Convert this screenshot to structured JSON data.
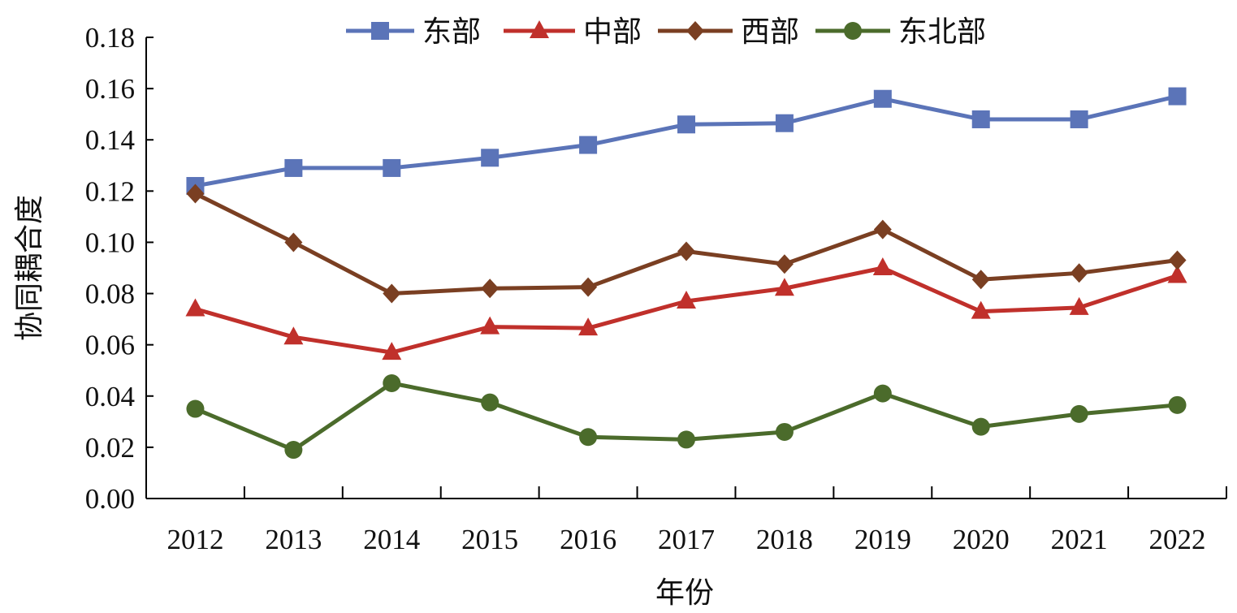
{
  "chart_data": {
    "type": "line",
    "title": "",
    "xlabel": "年份",
    "ylabel": "协同耦合度",
    "categories": [
      "2012",
      "2013",
      "2014",
      "2015",
      "2016",
      "2017",
      "2018",
      "2019",
      "2020",
      "2021",
      "2022"
    ],
    "ylim": [
      0,
      0.18
    ],
    "yticks": [
      "0.00",
      "0.02",
      "0.04",
      "0.06",
      "0.08",
      "0.10",
      "0.12",
      "0.14",
      "0.16",
      "0.18"
    ],
    "grid": false,
    "legend_position": "top-center",
    "series": [
      {
        "name": "东部",
        "color": "#5B74B8",
        "marker": "square",
        "values": [
          0.122,
          0.129,
          0.129,
          0.133,
          0.138,
          0.146,
          0.1465,
          0.156,
          0.148,
          0.148,
          0.157
        ]
      },
      {
        "name": "中部",
        "color": "#C0302B",
        "marker": "triangle",
        "values": [
          0.074,
          0.063,
          0.057,
          0.067,
          0.0665,
          0.077,
          0.082,
          0.09,
          0.073,
          0.0745,
          0.087
        ]
      },
      {
        "name": "西部",
        "color": "#7A3F22",
        "marker": "diamond",
        "values": [
          0.119,
          0.1,
          0.08,
          0.082,
          0.0825,
          0.0965,
          0.0915,
          0.105,
          0.0855,
          0.088,
          0.093
        ]
      },
      {
        "name": "东北部",
        "color": "#4B6B2B",
        "marker": "circle",
        "values": [
          0.035,
          0.019,
          0.045,
          0.0375,
          0.024,
          0.023,
          0.026,
          0.041,
          0.028,
          0.033,
          0.0365
        ]
      }
    ]
  }
}
